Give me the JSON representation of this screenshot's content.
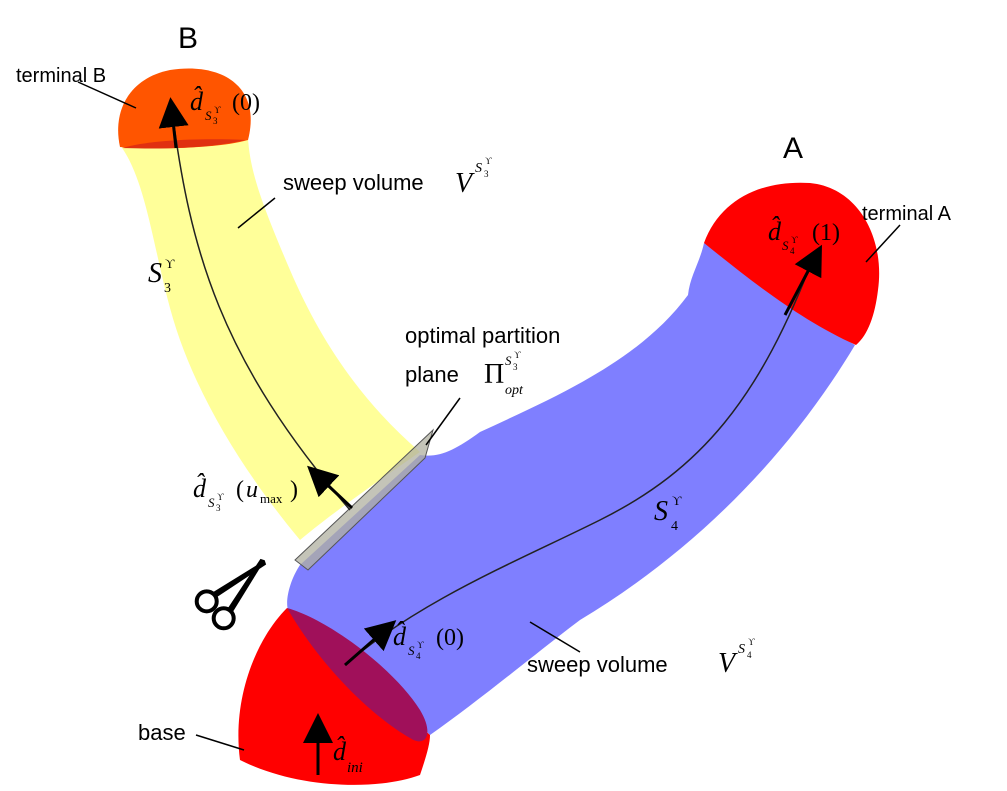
{
  "labels": {
    "corner_b": "B",
    "corner_a": "A",
    "terminal_b": "terminal B",
    "terminal_a": "terminal A",
    "sweep_volume_top": "sweep volume",
    "sweep_volume_bottom": "sweep volume",
    "optimal_line1": "optimal partition",
    "optimal_line2": "plane",
    "base": "base"
  },
  "math": {
    "d_hat": "d̂",
    "V": "V",
    "S": "S",
    "Pi": "Π",
    "sub_3": "3",
    "sub_4": "4",
    "upsilon": "ϒ",
    "opt": "opt",
    "ini": "ini",
    "arg_0": "(0)",
    "arg_1": "(1)",
    "arg_u_open": "(",
    "arg_u": "u",
    "arg_max": "max",
    "arg_u_close": ")"
  },
  "colors": {
    "yellow_tube": "#FFFF99",
    "blue_tube": "#7F7FFF",
    "red_terminal": "#FF0000",
    "orange_terminal": "#FF5500",
    "dark_red": "#A0105A",
    "plane": "#B0B0A0"
  }
}
